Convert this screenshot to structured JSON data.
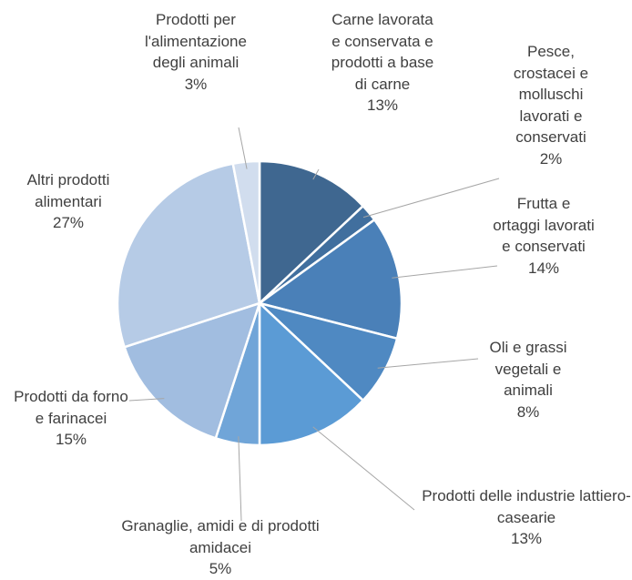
{
  "chart_data": {
    "type": "pie",
    "categories": [
      "Carne lavorata e conservata e prodotti a base di carne",
      "Pesce, crostacei e molluschi lavorati e conservati",
      "Frutta e ortaggi lavorati e conservati",
      "Oli e grassi vegetali e animali",
      "Prodotti delle industrie lattiero-casearie",
      "Granaglie, amidi e di prodotti amidacei",
      "Prodotti da forno e farinacei",
      "Altri prodotti alimentari",
      "Prodotti per l'alimentazione degli animali"
    ],
    "values": [
      13,
      2,
      14,
      8,
      13,
      5,
      15,
      27,
      3
    ],
    "value_labels": [
      "13%",
      "2%",
      "14%",
      "8%",
      "13%",
      "5%",
      "15%",
      "27%",
      "3%"
    ],
    "colors": [
      "#3f6790",
      "#416f9e",
      "#4a80b8",
      "#4f89c2",
      "#5b9bd5",
      "#70a5d8",
      "#a1bde0",
      "#b6cbe6",
      "#d1ddee"
    ]
  }
}
